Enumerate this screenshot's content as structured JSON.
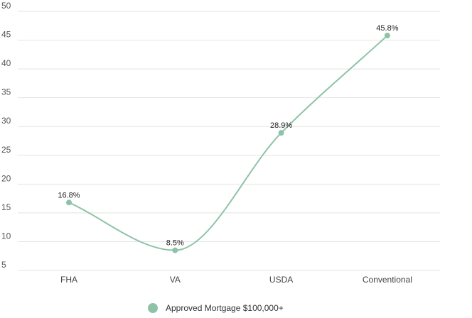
{
  "chart_data": {
    "type": "line",
    "categories": [
      "FHA",
      "VA",
      "USDA",
      "Conventional"
    ],
    "series": [
      {
        "name": "Approved Mortgage $100,000+",
        "values": [
          16.8,
          8.5,
          28.9,
          45.8
        ],
        "labels": [
          "16.8%",
          "8.5%",
          "28.9%",
          "45.8%"
        ],
        "color": "#8dc3a7"
      }
    ],
    "yticks": [
      "5",
      "10",
      "15",
      "20",
      "25",
      "30",
      "35",
      "40",
      "45",
      "50"
    ],
    "ylim": [
      5,
      50
    ],
    "grid": true,
    "legend": "bottom",
    "gridColor": "#e3e3e3"
  }
}
